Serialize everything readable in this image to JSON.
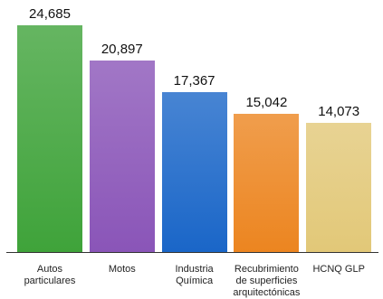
{
  "chart_data": {
    "type": "bar",
    "categories": [
      "Autos\nparticulares",
      "Motos",
      "Industria\nQuímica",
      "Recubrimiento\nde superficies\narquitectónicas",
      "HCNQ GLP"
    ],
    "values": [
      24685,
      20897,
      17367,
      15042,
      14073
    ],
    "value_labels": [
      "24,685",
      "20,897",
      "17,367",
      "15,042",
      "14,073"
    ],
    "colors": [
      "#3fa33a",
      "#8a55b8",
      "#1a66c8",
      "#ec8520",
      "#e2c878"
    ]
  }
}
